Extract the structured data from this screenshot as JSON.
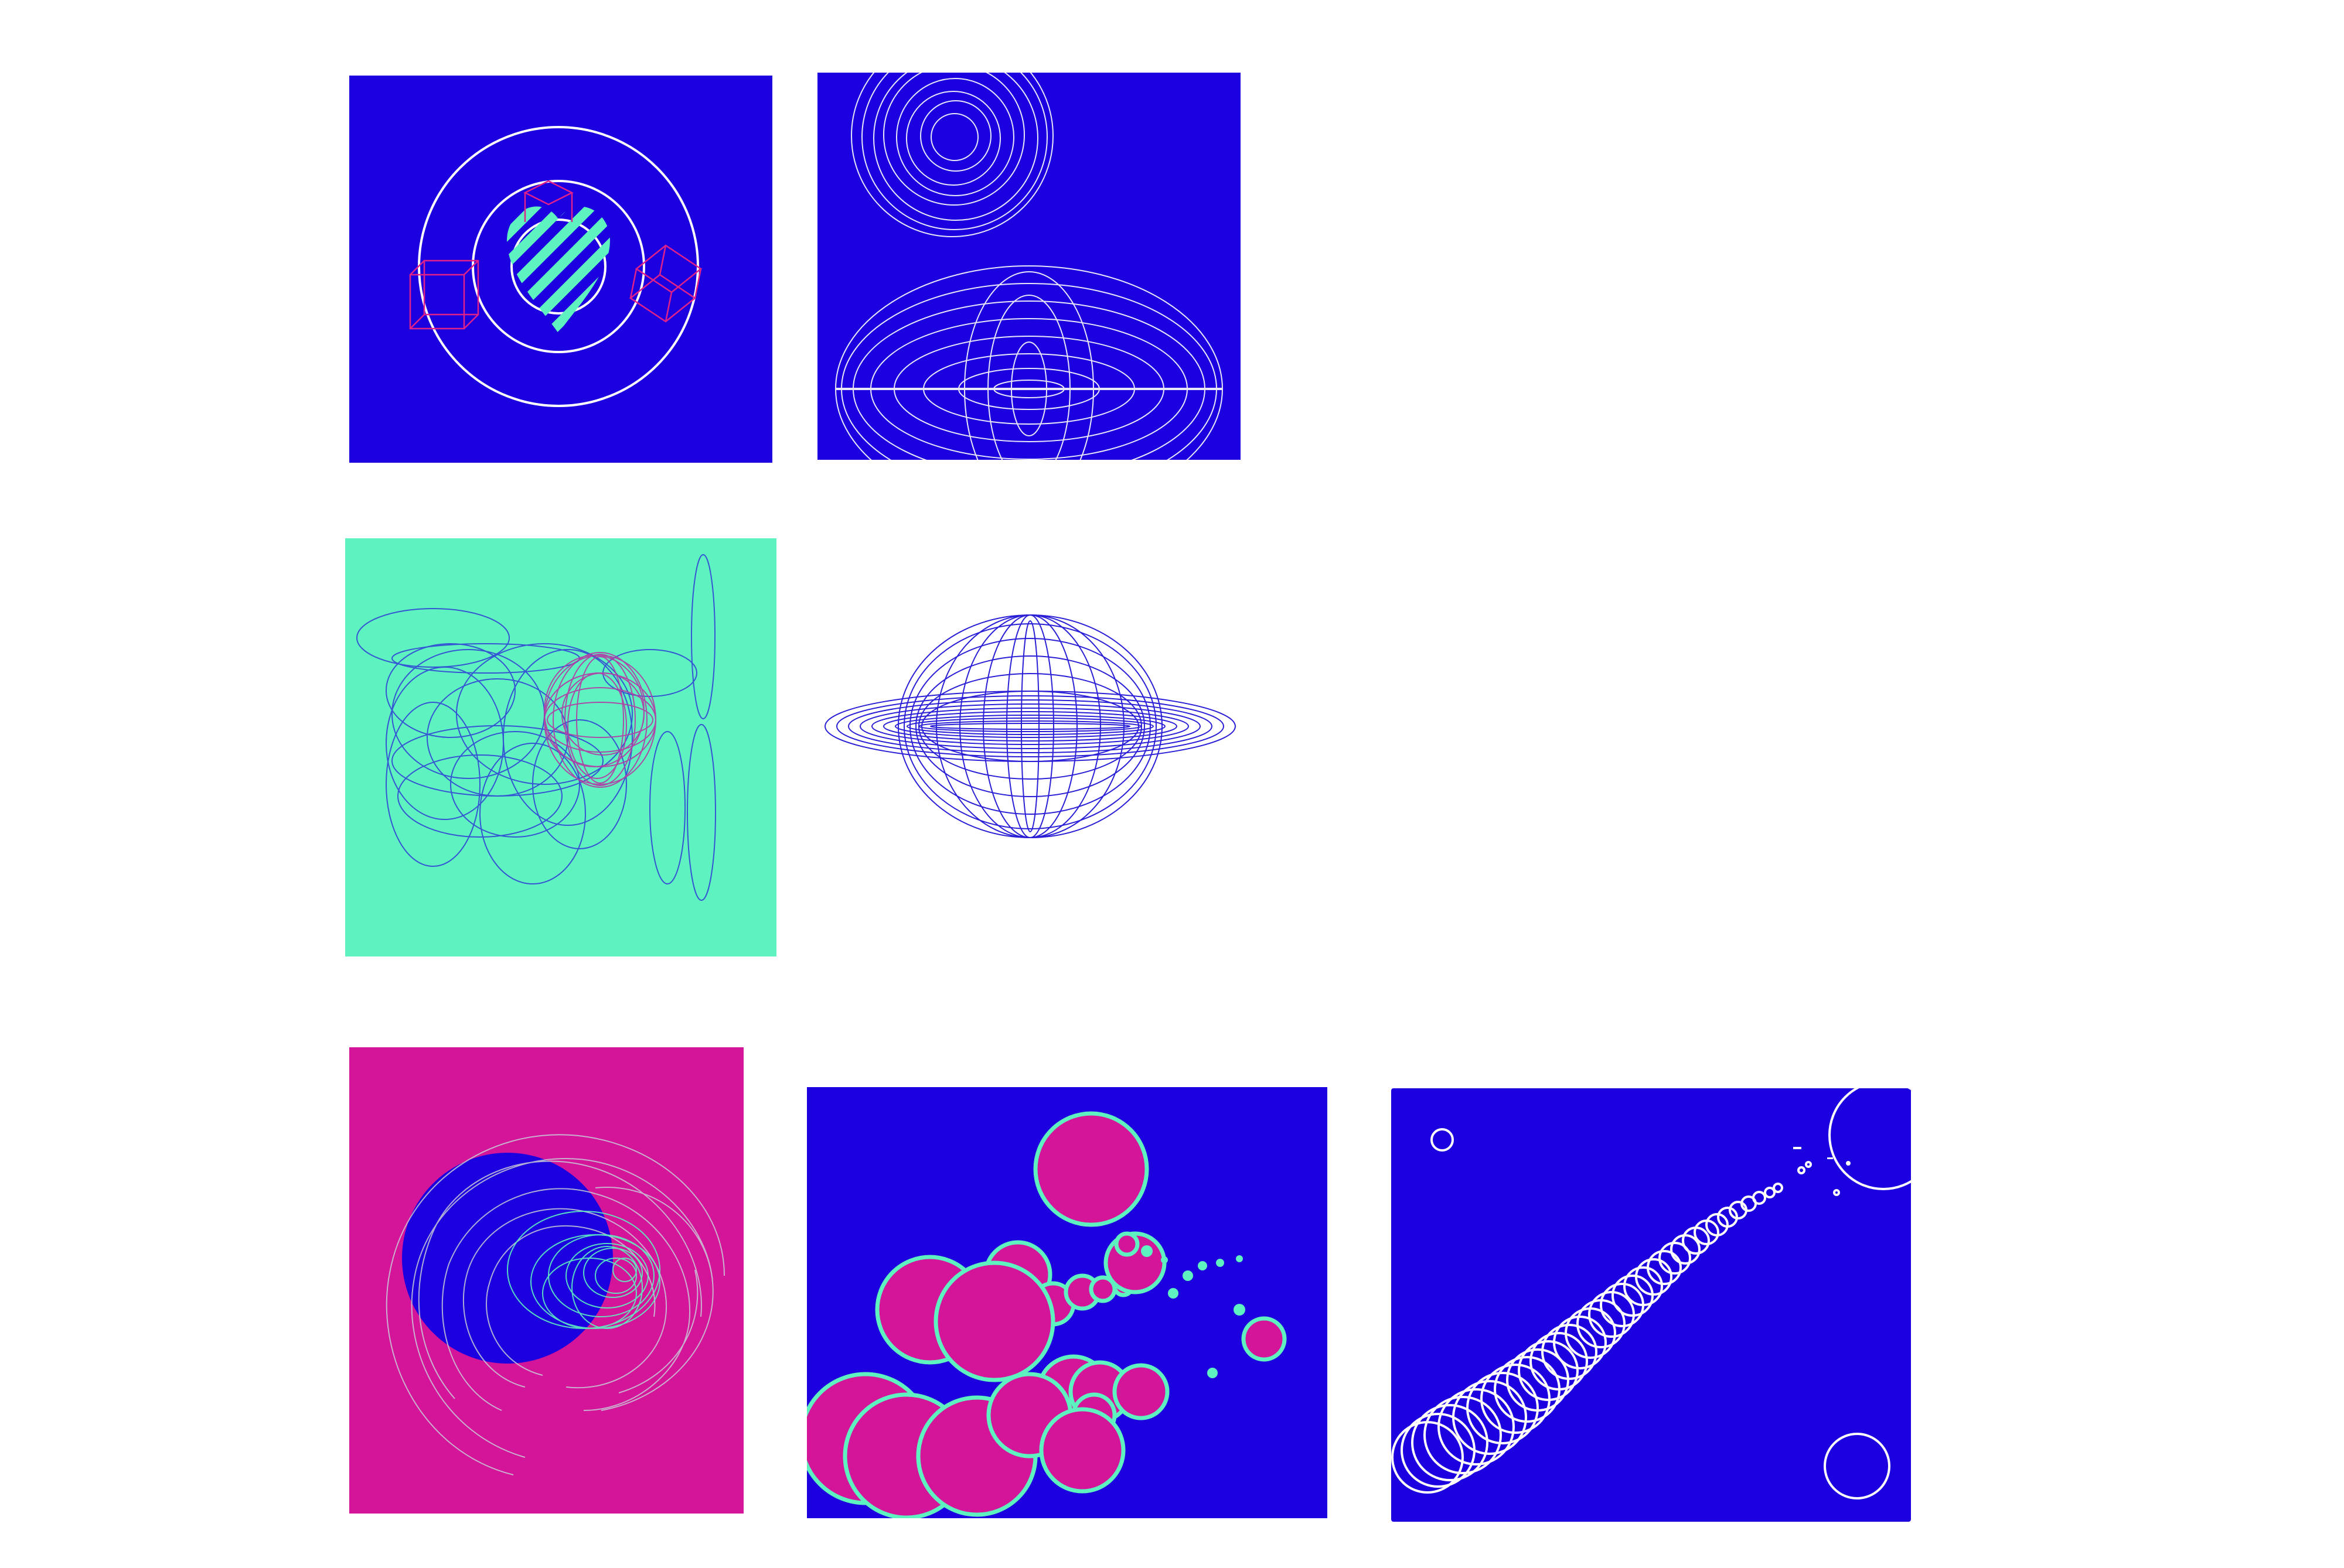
{
  "colors": {
    "background": "#ffffff",
    "blue": "#1d00e0",
    "mint": "#5ef2c0",
    "magenta": "#d4159a",
    "white": "#ffffff"
  },
  "tiles": [
    {
      "id": "t1",
      "background": "blue",
      "motif": "concentric-rings-striped-heart-wireframe-cubes"
    },
    {
      "id": "t2",
      "background": "blue",
      "motif": "ring-cluster-and-lens-of-ellipses"
    },
    {
      "id": "t3",
      "background": "mint",
      "motif": "scribbled-ellipses"
    },
    {
      "id": "t4",
      "background": "white",
      "motif": "saturn-like-ellipse-wireframe"
    },
    {
      "id": "t5",
      "background": "magenta",
      "motif": "spiral-of-arcs-over-blue-disc"
    },
    {
      "id": "t6",
      "background": "blue",
      "motif": "magenta-bubbles-with-mint-outline"
    },
    {
      "id": "t7",
      "background": "blue",
      "motif": "trail-of-white-circles"
    }
  ]
}
